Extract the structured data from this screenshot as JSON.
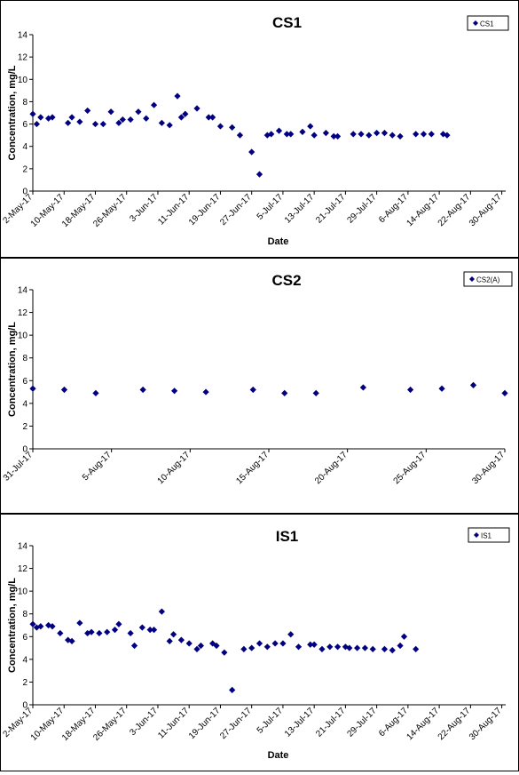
{
  "chart_data": [
    {
      "type": "scatter",
      "title": "CS1",
      "xlabel": "Date",
      "ylabel": "Concentration, mg/L",
      "legend": "top-right",
      "grid": false,
      "ylim": [
        0,
        14
      ],
      "yticks": [
        0,
        2,
        4,
        6,
        8,
        10,
        12,
        14
      ],
      "xlim": [
        "2017-05-02",
        "2017-08-31"
      ],
      "xticks": [
        {
          "date": "2017-05-02",
          "label": "2-May-17"
        },
        {
          "date": "2017-05-10",
          "label": "10-May-17"
        },
        {
          "date": "2017-05-18",
          "label": "18-May-17"
        },
        {
          "date": "2017-05-26",
          "label": "26-May-17"
        },
        {
          "date": "2017-06-03",
          "label": "3-Jun-17"
        },
        {
          "date": "2017-06-11",
          "label": "11-Jun-17"
        },
        {
          "date": "2017-06-19",
          "label": "19-Jun-17"
        },
        {
          "date": "2017-06-27",
          "label": "27-Jun-17"
        },
        {
          "date": "2017-07-05",
          "label": "5-Jul-17"
        },
        {
          "date": "2017-07-13",
          "label": "13-Jul-17"
        },
        {
          "date": "2017-07-21",
          "label": "21-Jul-17"
        },
        {
          "date": "2017-07-29",
          "label": "29-Jul-17"
        },
        {
          "date": "2017-08-06",
          "label": "6-Aug-17"
        },
        {
          "date": "2017-08-14",
          "label": "14-Aug-17"
        },
        {
          "date": "2017-08-22",
          "label": "22-Aug-17"
        },
        {
          "date": "2017-08-30",
          "label": "30-Aug-17"
        }
      ],
      "series": [
        {
          "name": "CS1",
          "color": "#000080",
          "points": [
            [
              "2017-05-02",
              6.9
            ],
            [
              "2017-05-03",
              6.0
            ],
            [
              "2017-05-04",
              6.6
            ],
            [
              "2017-05-06",
              6.5
            ],
            [
              "2017-05-07",
              6.6
            ],
            [
              "2017-05-11",
              6.1
            ],
            [
              "2017-05-12",
              6.6
            ],
            [
              "2017-05-14",
              6.2
            ],
            [
              "2017-05-16",
              7.2
            ],
            [
              "2017-05-18",
              6.0
            ],
            [
              "2017-05-20",
              6.0
            ],
            [
              "2017-05-22",
              7.1
            ],
            [
              "2017-05-24",
              6.1
            ],
            [
              "2017-05-25",
              6.4
            ],
            [
              "2017-05-27",
              6.4
            ],
            [
              "2017-05-29",
              7.1
            ],
            [
              "2017-05-31",
              6.5
            ],
            [
              "2017-06-02",
              7.7
            ],
            [
              "2017-06-04",
              6.1
            ],
            [
              "2017-06-06",
              5.9
            ],
            [
              "2017-06-08",
              8.5
            ],
            [
              "2017-06-09",
              6.6
            ],
            [
              "2017-06-10",
              6.9
            ],
            [
              "2017-06-13",
              7.4
            ],
            [
              "2017-06-16",
              6.6
            ],
            [
              "2017-06-17",
              6.6
            ],
            [
              "2017-06-19",
              5.8
            ],
            [
              "2017-06-22",
              5.7
            ],
            [
              "2017-06-24",
              5.0
            ],
            [
              "2017-06-27",
              3.5
            ],
            [
              "2017-06-29",
              1.5
            ],
            [
              "2017-07-01",
              5.0
            ],
            [
              "2017-07-02",
              5.1
            ],
            [
              "2017-07-04",
              5.4
            ],
            [
              "2017-07-06",
              5.1
            ],
            [
              "2017-07-07",
              5.1
            ],
            [
              "2017-07-10",
              5.3
            ],
            [
              "2017-07-12",
              5.8
            ],
            [
              "2017-07-13",
              5.0
            ],
            [
              "2017-07-16",
              5.2
            ],
            [
              "2017-07-18",
              4.9
            ],
            [
              "2017-07-19",
              4.9
            ],
            [
              "2017-07-23",
              5.1
            ],
            [
              "2017-07-25",
              5.1
            ],
            [
              "2017-07-27",
              5.0
            ],
            [
              "2017-07-29",
              5.2
            ],
            [
              "2017-07-31",
              5.2
            ],
            [
              "2017-08-02",
              5.0
            ],
            [
              "2017-08-04",
              4.9
            ],
            [
              "2017-08-08",
              5.1
            ],
            [
              "2017-08-10",
              5.1
            ],
            [
              "2017-08-12",
              5.1
            ],
            [
              "2017-08-15",
              5.1
            ],
            [
              "2017-08-16",
              5.0
            ]
          ]
        }
      ]
    },
    {
      "type": "scatter",
      "title": "CS2",
      "xlabel": "",
      "ylabel": "Concentration, mg/L",
      "legend": "top-right",
      "grid": false,
      "ylim": [
        0,
        14
      ],
      "yticks": [
        0,
        2,
        4,
        6,
        8,
        10,
        12,
        14
      ],
      "xlim": [
        "2017-07-31",
        "2017-08-30"
      ],
      "xticks": [
        {
          "date": "2017-07-31",
          "label": "31-Jul-17"
        },
        {
          "date": "2017-08-05",
          "label": "5-Aug-17"
        },
        {
          "date": "2017-08-10",
          "label": "10-Aug-17"
        },
        {
          "date": "2017-08-15",
          "label": "15-Aug-17"
        },
        {
          "date": "2017-08-20",
          "label": "20-Aug-17"
        },
        {
          "date": "2017-08-25",
          "label": "25-Aug-17"
        },
        {
          "date": "2017-08-30",
          "label": "30-Aug-17"
        }
      ],
      "series": [
        {
          "name": "CS2(A)",
          "color": "#000080",
          "points": [
            [
              "2017-07-31",
              5.3
            ],
            [
              "2017-08-02",
              5.2
            ],
            [
              "2017-08-04",
              4.9
            ],
            [
              "2017-08-07",
              5.2
            ],
            [
              "2017-08-09",
              5.1
            ],
            [
              "2017-08-11",
              5.0
            ],
            [
              "2017-08-14",
              5.2
            ],
            [
              "2017-08-16",
              4.9
            ],
            [
              "2017-08-18",
              4.9
            ],
            [
              "2017-08-21",
              5.4
            ],
            [
              "2017-08-24",
              5.2
            ],
            [
              "2017-08-26",
              5.3
            ],
            [
              "2017-08-28",
              5.6
            ],
            [
              "2017-08-30",
              4.9
            ]
          ]
        }
      ]
    },
    {
      "type": "scatter",
      "title": "IS1",
      "xlabel": "Date",
      "ylabel": "Concentration, mg/L",
      "legend": "top-right",
      "grid": false,
      "ylim": [
        0,
        14
      ],
      "yticks": [
        0,
        2,
        4,
        6,
        8,
        10,
        12,
        14
      ],
      "xlim": [
        "2017-05-02",
        "2017-08-31"
      ],
      "xticks": [
        {
          "date": "2017-05-02",
          "label": "2-May-17"
        },
        {
          "date": "2017-05-10",
          "label": "10-May-17"
        },
        {
          "date": "2017-05-18",
          "label": "18-May-17"
        },
        {
          "date": "2017-05-26",
          "label": "26-May-17"
        },
        {
          "date": "2017-06-03",
          "label": "3-Jun-17"
        },
        {
          "date": "2017-06-11",
          "label": "11-Jun-17"
        },
        {
          "date": "2017-06-19",
          "label": "19-Jun-17"
        },
        {
          "date": "2017-06-27",
          "label": "27-Jun-17"
        },
        {
          "date": "2017-07-05",
          "label": "5-Jul-17"
        },
        {
          "date": "2017-07-13",
          "label": "13-Jul-17"
        },
        {
          "date": "2017-07-21",
          "label": "21-Jul-17"
        },
        {
          "date": "2017-07-29",
          "label": "29-Jul-17"
        },
        {
          "date": "2017-08-06",
          "label": "6-Aug-17"
        },
        {
          "date": "2017-08-14",
          "label": "14-Aug-17"
        },
        {
          "date": "2017-08-22",
          "label": "22-Aug-17"
        },
        {
          "date": "2017-08-30",
          "label": "30-Aug-17"
        }
      ],
      "series": [
        {
          "name": "IS1",
          "color": "#000080",
          "points": [
            [
              "2017-05-02",
              7.1
            ],
            [
              "2017-05-03",
              6.8
            ],
            [
              "2017-05-04",
              6.9
            ],
            [
              "2017-05-06",
              7.0
            ],
            [
              "2017-05-07",
              6.9
            ],
            [
              "2017-05-09",
              6.3
            ],
            [
              "2017-05-11",
              5.7
            ],
            [
              "2017-05-12",
              5.6
            ],
            [
              "2017-05-14",
              7.2
            ],
            [
              "2017-05-16",
              6.3
            ],
            [
              "2017-05-17",
              6.4
            ],
            [
              "2017-05-19",
              6.3
            ],
            [
              "2017-05-21",
              6.4
            ],
            [
              "2017-05-23",
              6.6
            ],
            [
              "2017-05-24",
              7.1
            ],
            [
              "2017-05-27",
              6.3
            ],
            [
              "2017-05-28",
              5.2
            ],
            [
              "2017-05-30",
              6.8
            ],
            [
              "2017-06-01",
              6.6
            ],
            [
              "2017-06-02",
              6.6
            ],
            [
              "2017-06-04",
              8.2
            ],
            [
              "2017-06-06",
              5.6
            ],
            [
              "2017-06-07",
              6.2
            ],
            [
              "2017-06-09",
              5.7
            ],
            [
              "2017-06-11",
              5.4
            ],
            [
              "2017-06-13",
              4.9
            ],
            [
              "2017-06-14",
              5.2
            ],
            [
              "2017-06-17",
              5.4
            ],
            [
              "2017-06-18",
              5.2
            ],
            [
              "2017-06-20",
              4.6
            ],
            [
              "2017-06-22",
              1.3
            ],
            [
              "2017-06-25",
              4.9
            ],
            [
              "2017-06-27",
              5.0
            ],
            [
              "2017-06-29",
              5.4
            ],
            [
              "2017-07-01",
              5.1
            ],
            [
              "2017-07-03",
              5.4
            ],
            [
              "2017-07-05",
              5.4
            ],
            [
              "2017-07-07",
              6.2
            ],
            [
              "2017-07-09",
              5.1
            ],
            [
              "2017-07-12",
              5.3
            ],
            [
              "2017-07-13",
              5.3
            ],
            [
              "2017-07-15",
              4.9
            ],
            [
              "2017-07-17",
              5.1
            ],
            [
              "2017-07-19",
              5.1
            ],
            [
              "2017-07-21",
              5.1
            ],
            [
              "2017-07-22",
              5.0
            ],
            [
              "2017-07-24",
              5.0
            ],
            [
              "2017-07-26",
              5.0
            ],
            [
              "2017-07-28",
              4.9
            ],
            [
              "2017-07-31",
              4.9
            ],
            [
              "2017-08-02",
              4.8
            ],
            [
              "2017-08-04",
              5.2
            ],
            [
              "2017-08-05",
              6.0
            ],
            [
              "2017-08-08",
              4.9
            ]
          ]
        }
      ]
    }
  ]
}
